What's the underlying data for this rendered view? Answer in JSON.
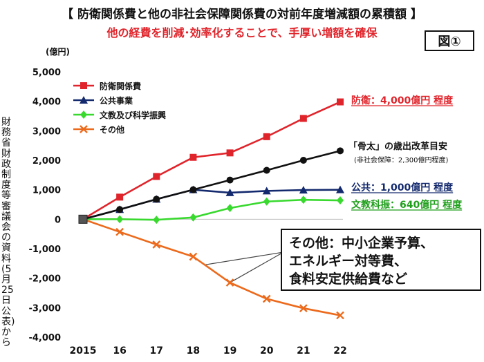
{
  "header": {
    "title": "【 防衛関係費と他の非社会保障関係費の対前年度増減額の累積額 】",
    "subtitle": "他の経費を削減･効率化することで、手厚い増額を確保",
    "figure_label": "図①",
    "unit": "(億円)",
    "source_note": "財務省財政制度等審議会の資料(5月25日公表)から"
  },
  "callout": {
    "lines": [
      "その他：中小企業予算、",
      "エネルギー対等費、",
      "食料安定供給費など"
    ]
  },
  "chart_data": {
    "type": "line",
    "x": [
      "2015",
      "16",
      "17",
      "18",
      "19",
      "20",
      "21",
      "22"
    ],
    "ylim": [
      -4000,
      5000
    ],
    "yticks": [
      5000,
      4000,
      3000,
      2000,
      1000,
      0,
      -1000,
      -2000,
      -3000,
      -4000
    ],
    "ytick_labels": [
      "5,000",
      "4,000",
      "3,000",
      "2,000",
      "1,000",
      "0",
      "-1,000",
      "-2,000",
      "-3,000",
      "-4,000"
    ],
    "ylabel": "(億円)",
    "grid": false,
    "legend_position": "top-left",
    "series": [
      {
        "name": "防衛関係費",
        "color": "#e0242b",
        "marker": "square",
        "values": [
          0,
          750,
          1450,
          2100,
          2250,
          2800,
          3420,
          3980
        ]
      },
      {
        "name": "公共事業",
        "color": "#142a6e",
        "marker": "triangle",
        "values": [
          0,
          330,
          680,
          1000,
          900,
          960,
          990,
          1000
        ]
      },
      {
        "name": "文教及び科学振興",
        "color": "#39d92f",
        "marker": "diamond",
        "values": [
          0,
          0,
          -20,
          60,
          380,
          600,
          660,
          640
        ]
      },
      {
        "name": "その他",
        "color": "#ec6a1c",
        "marker": "x",
        "values": [
          0,
          -430,
          -860,
          -1270,
          -2150,
          -2700,
          -3020,
          -3260
        ]
      },
      {
        "name": "",
        "color": "#111111",
        "marker": "circle",
        "values": [
          0,
          330,
          680,
          1000,
          1330,
          1660,
          2000,
          2320
        ]
      }
    ],
    "annotations": [
      {
        "text": "防衛：4,000億円 程度",
        "color": "#e0242b",
        "underline": true
      },
      {
        "text": "「骨太」の歳出改革目安",
        "color": "#111111"
      },
      {
        "text": "(非社会保障：2,300億円程度)",
        "color": "#111111"
      },
      {
        "text": "公共：1,000億円 程度",
        "color": "#142a6e",
        "underline": true
      },
      {
        "text": "文教科振：640億円 程度",
        "color": "#1e9e1a",
        "underline": true
      }
    ]
  }
}
